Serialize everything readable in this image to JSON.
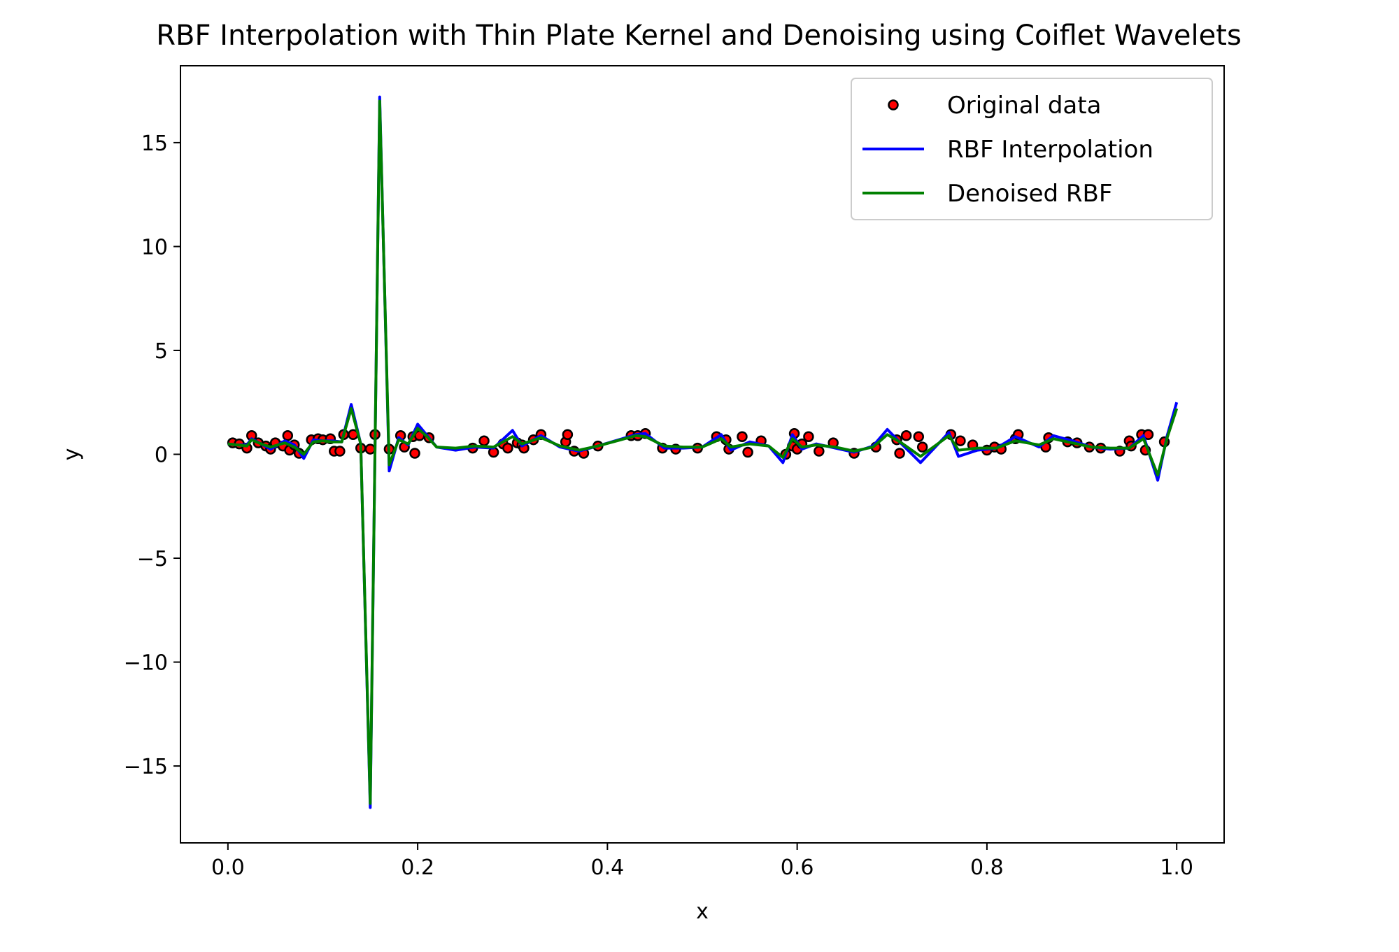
{
  "chart_data": {
    "type": "line",
    "title": "RBF Interpolation with Thin Plate Kernel and Denoising using Coiflet Wavelets",
    "xlabel": "x",
    "ylabel": "y",
    "xlim": [
      -0.05,
      1.05
    ],
    "ylim": [
      -18.7,
      18.7
    ],
    "x_ticks": [
      0.0,
      0.2,
      0.4,
      0.6,
      0.8,
      1.0
    ],
    "x_tick_labels": [
      "0.0",
      "0.2",
      "0.4",
      "0.6",
      "0.8",
      "1.0"
    ],
    "y_ticks": [
      -15,
      -10,
      -5,
      0,
      5,
      10,
      15
    ],
    "y_tick_labels": [
      "−15",
      "−10",
      "−5",
      "0",
      "5",
      "10",
      "15"
    ],
    "grid": false,
    "legend_position": "top-right",
    "series": [
      {
        "name": "Original data",
        "kind": "scatter",
        "color": "#ff0000",
        "edge_color": "#000000",
        "points": [
          [
            0.005,
            0.55
          ],
          [
            0.012,
            0.5
          ],
          [
            0.02,
            0.3
          ],
          [
            0.025,
            0.9
          ],
          [
            0.032,
            0.55
          ],
          [
            0.04,
            0.4
          ],
          [
            0.045,
            0.25
          ],
          [
            0.05,
            0.55
          ],
          [
            0.058,
            0.4
          ],
          [
            0.063,
            0.9
          ],
          [
            0.065,
            0.2
          ],
          [
            0.07,
            0.45
          ],
          [
            0.075,
            0.05
          ],
          [
            0.088,
            0.7
          ],
          [
            0.095,
            0.75
          ],
          [
            0.1,
            0.7
          ],
          [
            0.108,
            0.75
          ],
          [
            0.112,
            0.15
          ],
          [
            0.118,
            0.15
          ],
          [
            0.122,
            0.95
          ],
          [
            0.132,
            0.95
          ],
          [
            0.14,
            0.3
          ],
          [
            0.15,
            0.25
          ],
          [
            0.155,
            0.95
          ],
          [
            0.17,
            0.25
          ],
          [
            0.182,
            0.9
          ],
          [
            0.186,
            0.35
          ],
          [
            0.195,
            0.85
          ],
          [
            0.197,
            0.05
          ],
          [
            0.202,
            0.9
          ],
          [
            0.212,
            0.8
          ],
          [
            0.258,
            0.3
          ],
          [
            0.27,
            0.65
          ],
          [
            0.28,
            0.1
          ],
          [
            0.29,
            0.5
          ],
          [
            0.295,
            0.3
          ],
          [
            0.305,
            0.55
          ],
          [
            0.31,
            0.45
          ],
          [
            0.312,
            0.3
          ],
          [
            0.322,
            0.7
          ],
          [
            0.33,
            0.95
          ],
          [
            0.356,
            0.6
          ],
          [
            0.358,
            0.95
          ],
          [
            0.365,
            0.15
          ],
          [
            0.375,
            0.05
          ],
          [
            0.39,
            0.4
          ],
          [
            0.425,
            0.9
          ],
          [
            0.432,
            0.9
          ],
          [
            0.44,
            1.0
          ],
          [
            0.458,
            0.3
          ],
          [
            0.472,
            0.25
          ],
          [
            0.495,
            0.3
          ],
          [
            0.515,
            0.85
          ],
          [
            0.525,
            0.7
          ],
          [
            0.528,
            0.25
          ],
          [
            0.542,
            0.85
          ],
          [
            0.548,
            0.1
          ],
          [
            0.562,
            0.65
          ],
          [
            0.588,
            0.0
          ],
          [
            0.595,
            0.4
          ],
          [
            0.597,
            1.0
          ],
          [
            0.6,
            0.25
          ],
          [
            0.605,
            0.5
          ],
          [
            0.612,
            0.85
          ],
          [
            0.623,
            0.15
          ],
          [
            0.638,
            0.55
          ],
          [
            0.66,
            0.05
          ],
          [
            0.683,
            0.35
          ],
          [
            0.705,
            0.7
          ],
          [
            0.708,
            0.05
          ],
          [
            0.715,
            0.9
          ],
          [
            0.728,
            0.85
          ],
          [
            0.732,
            0.35
          ],
          [
            0.762,
            0.95
          ],
          [
            0.772,
            0.65
          ],
          [
            0.785,
            0.45
          ],
          [
            0.8,
            0.2
          ],
          [
            0.808,
            0.35
          ],
          [
            0.815,
            0.25
          ],
          [
            0.83,
            0.75
          ],
          [
            0.833,
            0.95
          ],
          [
            0.862,
            0.35
          ],
          [
            0.865,
            0.8
          ],
          [
            0.885,
            0.6
          ],
          [
            0.895,
            0.55
          ],
          [
            0.908,
            0.35
          ],
          [
            0.92,
            0.3
          ],
          [
            0.94,
            0.15
          ],
          [
            0.95,
            0.65
          ],
          [
            0.952,
            0.4
          ],
          [
            0.963,
            0.95
          ],
          [
            0.967,
            0.2
          ],
          [
            0.97,
            0.95
          ],
          [
            0.987,
            0.6
          ]
        ]
      },
      {
        "name": "RBF Interpolation",
        "kind": "line",
        "color": "#0000ff",
        "points": [
          [
            0.0,
            0.5
          ],
          [
            0.01,
            0.45
          ],
          [
            0.02,
            0.45
          ],
          [
            0.025,
            0.75
          ],
          [
            0.035,
            0.5
          ],
          [
            0.045,
            0.25
          ],
          [
            0.06,
            0.65
          ],
          [
            0.07,
            0.45
          ],
          [
            0.08,
            -0.2
          ],
          [
            0.09,
            0.7
          ],
          [
            0.1,
            0.65
          ],
          [
            0.11,
            0.65
          ],
          [
            0.12,
            0.6
          ],
          [
            0.13,
            2.4
          ],
          [
            0.14,
            0.5
          ],
          [
            0.15,
            -17.0
          ],
          [
            0.16,
            17.2
          ],
          [
            0.17,
            -0.8
          ],
          [
            0.18,
            0.8
          ],
          [
            0.19,
            0.45
          ],
          [
            0.2,
            1.45
          ],
          [
            0.21,
            0.9
          ],
          [
            0.22,
            0.35
          ],
          [
            0.24,
            0.2
          ],
          [
            0.26,
            0.35
          ],
          [
            0.28,
            0.3
          ],
          [
            0.3,
            1.15
          ],
          [
            0.31,
            0.4
          ],
          [
            0.33,
            0.9
          ],
          [
            0.35,
            0.35
          ],
          [
            0.37,
            0.15
          ],
          [
            0.39,
            0.4
          ],
          [
            0.43,
            0.95
          ],
          [
            0.44,
            1.0
          ],
          [
            0.46,
            0.3
          ],
          [
            0.48,
            0.3
          ],
          [
            0.5,
            0.35
          ],
          [
            0.52,
            0.95
          ],
          [
            0.53,
            0.2
          ],
          [
            0.55,
            0.6
          ],
          [
            0.57,
            0.4
          ],
          [
            0.585,
            -0.4
          ],
          [
            0.595,
            0.95
          ],
          [
            0.605,
            0.25
          ],
          [
            0.62,
            0.5
          ],
          [
            0.64,
            0.3
          ],
          [
            0.66,
            0.1
          ],
          [
            0.68,
            0.4
          ],
          [
            0.695,
            1.2
          ],
          [
            0.71,
            0.5
          ],
          [
            0.73,
            -0.4
          ],
          [
            0.76,
            1.05
          ],
          [
            0.77,
            -0.1
          ],
          [
            0.79,
            0.2
          ],
          [
            0.81,
            0.3
          ],
          [
            0.83,
            0.85
          ],
          [
            0.855,
            0.35
          ],
          [
            0.87,
            0.9
          ],
          [
            0.89,
            0.65
          ],
          [
            0.91,
            0.35
          ],
          [
            0.93,
            0.25
          ],
          [
            0.95,
            0.3
          ],
          [
            0.965,
            0.9
          ],
          [
            0.98,
            -1.25
          ],
          [
            0.99,
            0.9
          ],
          [
            1.0,
            2.5
          ]
        ]
      },
      {
        "name": "Denoised RBF",
        "kind": "line",
        "color": "#008000",
        "points": [
          [
            0.0,
            0.5
          ],
          [
            0.01,
            0.45
          ],
          [
            0.02,
            0.4
          ],
          [
            0.025,
            0.7
          ],
          [
            0.035,
            0.5
          ],
          [
            0.045,
            0.35
          ],
          [
            0.06,
            0.55
          ],
          [
            0.07,
            0.35
          ],
          [
            0.08,
            0.0
          ],
          [
            0.09,
            0.6
          ],
          [
            0.1,
            0.65
          ],
          [
            0.11,
            0.6
          ],
          [
            0.12,
            0.6
          ],
          [
            0.13,
            2.2
          ],
          [
            0.14,
            0.5
          ],
          [
            0.15,
            -16.8
          ],
          [
            0.16,
            17.0
          ],
          [
            0.17,
            -0.5
          ],
          [
            0.18,
            0.7
          ],
          [
            0.19,
            0.5
          ],
          [
            0.2,
            1.25
          ],
          [
            0.21,
            0.85
          ],
          [
            0.22,
            0.35
          ],
          [
            0.24,
            0.3
          ],
          [
            0.26,
            0.4
          ],
          [
            0.28,
            0.35
          ],
          [
            0.3,
            0.85
          ],
          [
            0.31,
            0.5
          ],
          [
            0.33,
            0.8
          ],
          [
            0.35,
            0.4
          ],
          [
            0.37,
            0.2
          ],
          [
            0.39,
            0.4
          ],
          [
            0.43,
            0.9
          ],
          [
            0.44,
            0.85
          ],
          [
            0.46,
            0.4
          ],
          [
            0.48,
            0.35
          ],
          [
            0.5,
            0.35
          ],
          [
            0.52,
            0.75
          ],
          [
            0.53,
            0.35
          ],
          [
            0.55,
            0.5
          ],
          [
            0.57,
            0.4
          ],
          [
            0.585,
            -0.15
          ],
          [
            0.595,
            0.75
          ],
          [
            0.605,
            0.35
          ],
          [
            0.62,
            0.45
          ],
          [
            0.64,
            0.35
          ],
          [
            0.66,
            0.15
          ],
          [
            0.68,
            0.35
          ],
          [
            0.695,
            0.95
          ],
          [
            0.71,
            0.55
          ],
          [
            0.73,
            -0.1
          ],
          [
            0.76,
            0.9
          ],
          [
            0.77,
            0.2
          ],
          [
            0.79,
            0.3
          ],
          [
            0.81,
            0.3
          ],
          [
            0.83,
            0.65
          ],
          [
            0.855,
            0.45
          ],
          [
            0.87,
            0.75
          ],
          [
            0.89,
            0.55
          ],
          [
            0.91,
            0.35
          ],
          [
            0.93,
            0.3
          ],
          [
            0.95,
            0.3
          ],
          [
            0.965,
            0.75
          ],
          [
            0.98,
            -1.0
          ],
          [
            0.99,
            0.8
          ],
          [
            1.0,
            2.2
          ]
        ]
      }
    ]
  }
}
